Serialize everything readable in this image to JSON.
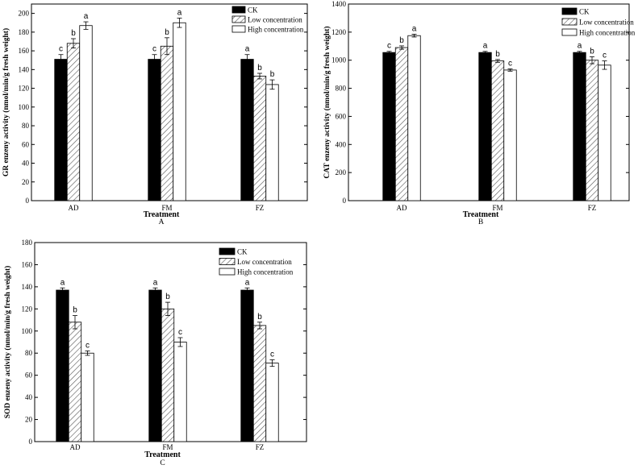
{
  "chart_data": [
    {
      "type": "bar",
      "panel": "A",
      "xlabel": "Treatment",
      "ylabel": "GR enzeny activity (nmol/min/g fresh weight)",
      "ylim": [
        0,
        210
      ],
      "yticks": [
        0,
        20,
        40,
        60,
        80,
        100,
        120,
        140,
        160,
        180,
        200
      ],
      "categories": [
        "AD",
        "FM",
        "FZ"
      ],
      "legend_position": "top-right",
      "series": [
        {
          "name": "CK",
          "fill": "solid",
          "color": "#000000",
          "values": [
            151,
            151,
            151
          ],
          "errors": [
            5,
            5,
            5
          ],
          "labels": [
            "c",
            "c",
            "a"
          ]
        },
        {
          "name": "Low concentration",
          "fill": "hatch",
          "color": "#ffffff",
          "values": [
            168,
            165,
            133
          ],
          "errors": [
            5,
            9,
            3
          ],
          "labels": [
            "b",
            "b",
            "b"
          ]
        },
        {
          "name": "High concentration",
          "fill": "white",
          "color": "#ffffff",
          "values": [
            187,
            190,
            124
          ],
          "errors": [
            4,
            5,
            5
          ],
          "labels": [
            "a",
            "a",
            "b"
          ]
        }
      ]
    },
    {
      "type": "bar",
      "panel": "B",
      "xlabel": "Treatment",
      "ylabel": "CAT enzeny activity (nmol/min/g fresh weight)",
      "ylim": [
        0,
        1400
      ],
      "yticks": [
        0,
        200,
        400,
        600,
        800,
        1000,
        1200,
        1400
      ],
      "categories": [
        "AD",
        "FM",
        "FZ"
      ],
      "legend_position": "top-right",
      "series": [
        {
          "name": "CK",
          "fill": "solid",
          "color": "#000000",
          "values": [
            1055,
            1055,
            1055
          ],
          "errors": [
            8,
            8,
            8
          ],
          "labels": [
            "c",
            "a",
            "a"
          ]
        },
        {
          "name": "Low concentration",
          "fill": "hatch",
          "color": "#ffffff",
          "values": [
            1090,
            995,
            1000
          ],
          "errors": [
            12,
            10,
            25
          ],
          "labels": [
            "b",
            "b",
            "b"
          ]
        },
        {
          "name": "High concentration",
          "fill": "white",
          "color": "#ffffff",
          "values": [
            1175,
            930,
            965
          ],
          "errors": [
            10,
            8,
            30
          ],
          "labels": [
            "a",
            "c",
            "c"
          ]
        }
      ]
    },
    {
      "type": "bar",
      "panel": "C",
      "xlabel": "Treatment",
      "ylabel": "SOD enzeny activity (nmol/min/g fresh weight)",
      "ylim": [
        0,
        180
      ],
      "yticks": [
        0,
        20,
        40,
        60,
        80,
        100,
        120,
        140,
        160,
        180
      ],
      "categories": [
        "AD",
        "FM",
        "FZ"
      ],
      "legend_position": "top-right",
      "series": [
        {
          "name": "CK",
          "fill": "solid",
          "color": "#000000",
          "values": [
            137,
            137,
            137
          ],
          "errors": [
            2,
            2,
            2
          ],
          "labels": [
            "a",
            "a",
            "a"
          ]
        },
        {
          "name": "Low concentration",
          "fill": "hatch",
          "color": "#ffffff",
          "values": [
            108,
            120,
            105
          ],
          "errors": [
            6,
            6,
            3
          ],
          "labels": [
            "b",
            "b",
            "b"
          ]
        },
        {
          "name": "High concentration",
          "fill": "white",
          "color": "#ffffff",
          "values": [
            80,
            90,
            71
          ],
          "errors": [
            2,
            4,
            3
          ],
          "labels": [
            "c",
            "c",
            "c"
          ]
        }
      ]
    }
  ]
}
